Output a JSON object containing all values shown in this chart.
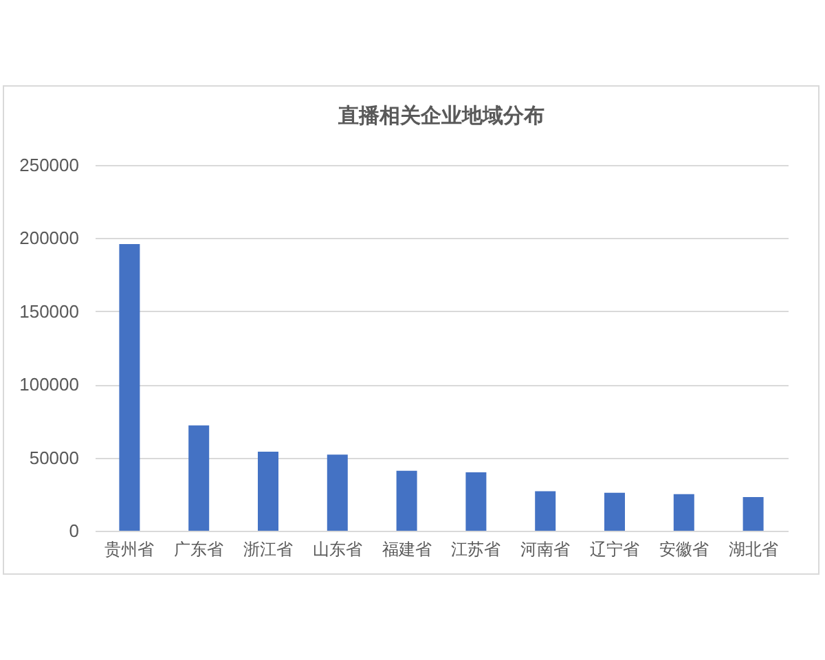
{
  "chart_data": {
    "type": "bar",
    "title": "直播相关企业地域分布",
    "categories": [
      "贵州省",
      "广东省",
      "浙江省",
      "山东省",
      "福建省",
      "江苏省",
      "河南省",
      "辽宁省",
      "安徽省",
      "湖北省"
    ],
    "values": [
      196000,
      72000,
      54000,
      52000,
      41000,
      40000,
      27000,
      26000,
      25000,
      23000
    ],
    "color": "#4472c4",
    "ylim": [
      0,
      250000
    ],
    "yticks": [
      0,
      50000,
      100000,
      150000,
      200000,
      250000
    ],
    "grid": "y"
  }
}
